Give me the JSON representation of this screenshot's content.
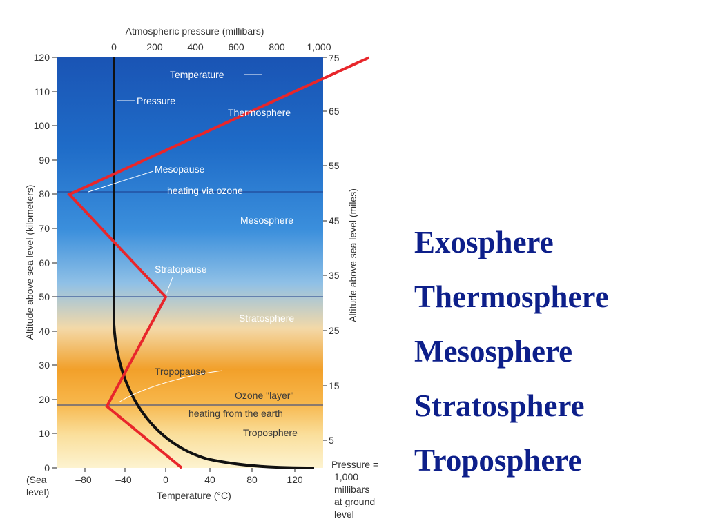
{
  "diagram": {
    "top_axis_title": "Atmospheric pressure (millibars)",
    "pressure_ticks": [
      "0",
      "200",
      "400",
      "600",
      "800",
      "1,000"
    ],
    "left_axis_title": "Altitude above sea level (kilometers)",
    "km_ticks": [
      "0",
      "10",
      "20",
      "30",
      "40",
      "50",
      "60",
      "70",
      "80",
      "90",
      "100",
      "110",
      "120"
    ],
    "sea_level_label": [
      "(Sea",
      "level)"
    ],
    "right_axis_title": "Altitude above sea level (miles)",
    "mile_ticks": [
      "5",
      "15",
      "25",
      "35",
      "45",
      "55",
      "65",
      "75"
    ],
    "bottom_axis_title": "Temperature (°C)",
    "temperature_ticks": [
      "–80",
      "–40",
      "0",
      "40",
      "80",
      "120"
    ],
    "pressure_note": [
      "Pressure =",
      "1,000",
      "millibars",
      "at ground",
      "level"
    ],
    "labels": {
      "temperature": "Temperature",
      "pressure": "Pressure",
      "thermosphere": "Thermosphere",
      "mesopause": "Mesopause",
      "heating_ozone": "heating via ozone",
      "mesosphere": "Mesosphere",
      "stratopause": "Stratopause",
      "stratosphere": "Stratosphere",
      "tropopause": "Tropopause",
      "ozone_layer": "Ozone \"layer\"",
      "heating_earth": "heating from the earth",
      "troposphere": "Troposphere"
    },
    "temperature_profile": [
      {
        "altitude_km": 0,
        "temp_c": 15
      },
      {
        "altitude_km": 18,
        "temp_c": -55
      },
      {
        "altitude_km": 50,
        "temp_c": 0
      },
      {
        "altitude_km": 80,
        "temp_c": -90
      },
      {
        "altitude_km": 120,
        "temp_c": 190
      }
    ],
    "colors": {
      "temperature_line": "#e8262b",
      "pressure_line": "#111111",
      "sky_top": "#1a54b4",
      "warm_band": "#f2a02a",
      "label_text": "#ffffff"
    }
  },
  "layers": [
    "Exosphere",
    "Thermosphere",
    "Mesosphere",
    "Stratosphere",
    "Troposphere"
  ]
}
